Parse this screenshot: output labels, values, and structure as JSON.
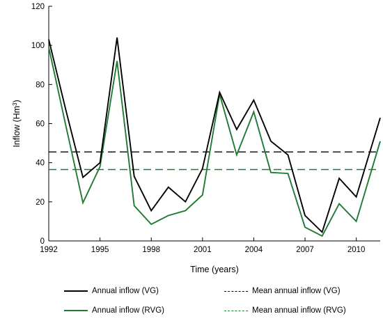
{
  "chart_data": {
    "type": "line",
    "xlabel": "Time (years)",
    "ylabel_main": "Inflow (Hm",
    "ylabel_sup": "3",
    "ylabel_end": ")",
    "xlim": [
      1992,
      2011.4
    ],
    "ylim": [
      0,
      120
    ],
    "xticks": [
      1992,
      1995,
      1998,
      2001,
      2004,
      2007,
      2010
    ],
    "yticks": [
      0,
      20,
      40,
      60,
      80,
      100,
      120
    ],
    "grid": false,
    "legend_position": "bottom",
    "x": [
      1992,
      1993,
      1994,
      1995,
      1996,
      1997,
      1998,
      1999,
      2000,
      2001,
      2002,
      2003,
      2004,
      2005,
      2006,
      2007,
      2008,
      2009,
      2010,
      2011.4
    ],
    "series": [
      {
        "name": "Annual inflow (VG)",
        "color": "#000000",
        "style": "solid",
        "values": [
          103,
          67,
          32.5,
          40,
          104,
          33,
          15.5,
          27.5,
          20,
          37,
          76,
          57,
          72,
          51,
          44,
          13,
          4.5,
          32,
          22.5,
          63
        ]
      },
      {
        "name": "Annual inflow (RVG)",
        "color": "#1f7a33",
        "style": "solid",
        "values": [
          99,
          59,
          19.5,
          38,
          92,
          18,
          8.5,
          13,
          15.5,
          23.5,
          75,
          44,
          66,
          35,
          34.5,
          7,
          2.5,
          19,
          10,
          51
        ]
      },
      {
        "name": "Mean annual inflow (VG)",
        "color": "#000000",
        "style": "dashed",
        "values": [
          45.5,
          45.5,
          45.5,
          45.5,
          45.5,
          45.5,
          45.5,
          45.5,
          45.5,
          45.5,
          45.5,
          45.5,
          45.5,
          45.5,
          45.5,
          45.5,
          45.5,
          45.5,
          45.5,
          45.5
        ]
      },
      {
        "name": "Mean annual inflow (RVG)",
        "color": "#1f7a33",
        "style": "dashed",
        "values": [
          36.5,
          36.5,
          36.5,
          36.5,
          36.5,
          36.5,
          36.5,
          36.5,
          36.5,
          36.5,
          36.5,
          36.5,
          36.5,
          36.5,
          36.5,
          36.5,
          36.5,
          36.5,
          36.5,
          36.5
        ]
      }
    ]
  }
}
